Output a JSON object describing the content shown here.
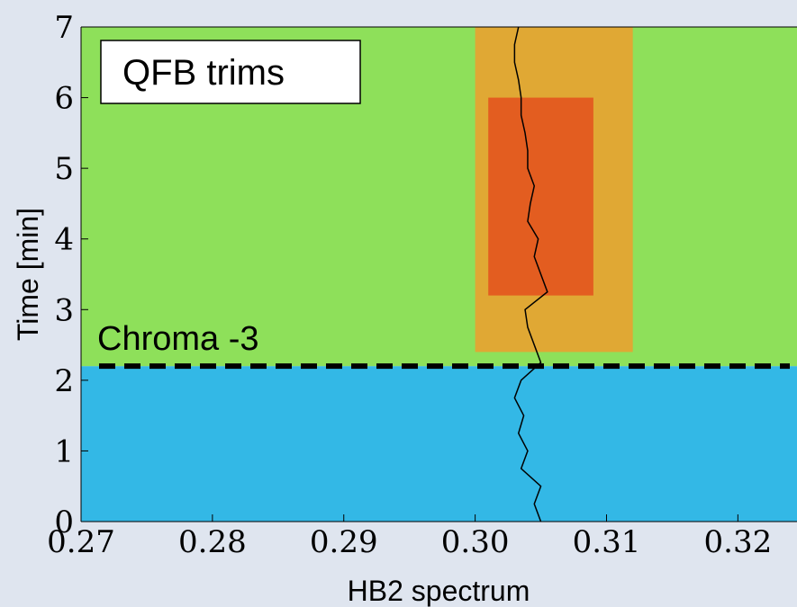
{
  "chart_data": {
    "type": "spectrogram",
    "xlabel": "HB2 spectrum",
    "ylabel": "Time [min]",
    "xlim": [
      0.27,
      0.3245
    ],
    "ylim": [
      0,
      7
    ],
    "xticks": [
      0.27,
      0.28,
      0.29,
      {
        "value": 0.3,
        "label": "0.30"
      },
      0.31,
      0.32
    ],
    "yticks": [
      0,
      1,
      2,
      3,
      4,
      5,
      6,
      7
    ],
    "heatmap_regions": [
      {
        "x": [
          0.27,
          0.3245
        ],
        "y": [
          0,
          2.2
        ],
        "color": "#33b8e6"
      },
      {
        "x": [
          0.27,
          0.3245
        ],
        "y": [
          2.2,
          7
        ],
        "color": "#8ee05a"
      },
      {
        "x": [
          0.3,
          0.312
        ],
        "y": [
          2.4,
          7
        ],
        "color": "#f59a2a"
      },
      {
        "x": [
          0.301,
          0.309
        ],
        "y": [
          3.2,
          6
        ],
        "color": "#e44a1c"
      }
    ],
    "trace": {
      "color": "#000000",
      "x": [
        0.305,
        0.3045,
        0.305,
        0.3035,
        0.304,
        0.3033,
        0.3037,
        0.303,
        0.3035,
        0.305,
        0.3045,
        0.304,
        0.3038,
        0.3055,
        0.305,
        0.3045,
        0.3048,
        0.304,
        0.3042,
        0.3045,
        0.304,
        0.304,
        0.3038,
        0.3035,
        0.3035,
        0.3033,
        0.303,
        0.303,
        0.3033
      ],
      "values": [
        0,
        0.25,
        0.5,
        0.75,
        1,
        1.25,
        1.5,
        1.75,
        2,
        2.25,
        2.5,
        2.75,
        3,
        3.25,
        3.5,
        3.75,
        4,
        4.25,
        4.5,
        4.75,
        5,
        5.25,
        5.5,
        5.75,
        6,
        6.25,
        6.5,
        6.75,
        7
      ]
    },
    "threshold": {
      "value": 2.2,
      "label": "Chroma -3"
    },
    "annotation": "QFB trims"
  }
}
